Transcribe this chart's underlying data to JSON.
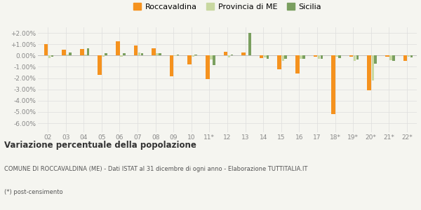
{
  "years": [
    "02",
    "03",
    "04",
    "05",
    "06",
    "07",
    "08",
    "09",
    "10",
    "11*",
    "12",
    "13",
    "14",
    "15",
    "16",
    "17",
    "18*",
    "19*",
    "20*",
    "21*",
    "22*"
  ],
  "roccavaldina": [
    1.0,
    0.5,
    0.6,
    -1.7,
    1.25,
    0.9,
    0.65,
    -1.85,
    -0.8,
    -2.1,
    0.3,
    0.28,
    -0.22,
    -1.2,
    -1.6,
    -0.08,
    -5.2,
    -0.08,
    -3.1,
    -0.1,
    -0.5
  ],
  "provincia_me": [
    -0.2,
    0.1,
    0.1,
    -0.1,
    -0.1,
    0.25,
    0.22,
    -0.05,
    -0.1,
    -0.38,
    -0.15,
    0.05,
    -0.18,
    -0.5,
    -0.3,
    -0.28,
    -0.1,
    -0.5,
    -2.2,
    -0.4,
    -0.1
  ],
  "sicilia": [
    -0.1,
    0.25,
    0.65,
    0.18,
    0.18,
    0.2,
    0.18,
    0.08,
    0.1,
    -0.85,
    0.1,
    2.0,
    -0.28,
    -0.28,
    -0.28,
    -0.28,
    -0.22,
    -0.38,
    -0.7,
    -0.45,
    -0.18
  ],
  "color_roccavaldina": "#f5921e",
  "color_provincia": "#c8d8a0",
  "color_sicilia": "#7a9f5f",
  "ylim": [
    -6.8,
    2.5
  ],
  "yticks": [
    2.0,
    1.0,
    0.0,
    -1.0,
    -2.0,
    -3.0,
    -4.0,
    -5.0,
    -6.0
  ],
  "ytick_labels": [
    "+2.00%",
    "+1.00%",
    "0.00%",
    "-1.00%",
    "-2.00%",
    "-3.00%",
    "-4.00%",
    "-5.00%",
    "-6.00%"
  ],
  "background_color": "#f5f5f0",
  "grid_color": "#dddddd",
  "title": "Variazione percentuale della popolazione",
  "subtitle2": "COMUNE DI ROCCAVALDINA (ME) - Dati ISTAT al 31 dicembre di ogni anno - Elaborazione TUTTITALIA.IT",
  "subtitle3": "(*) post-censimento",
  "legend_labels": [
    "Roccavaldina",
    "Provincia di ME",
    "Sicilia"
  ]
}
